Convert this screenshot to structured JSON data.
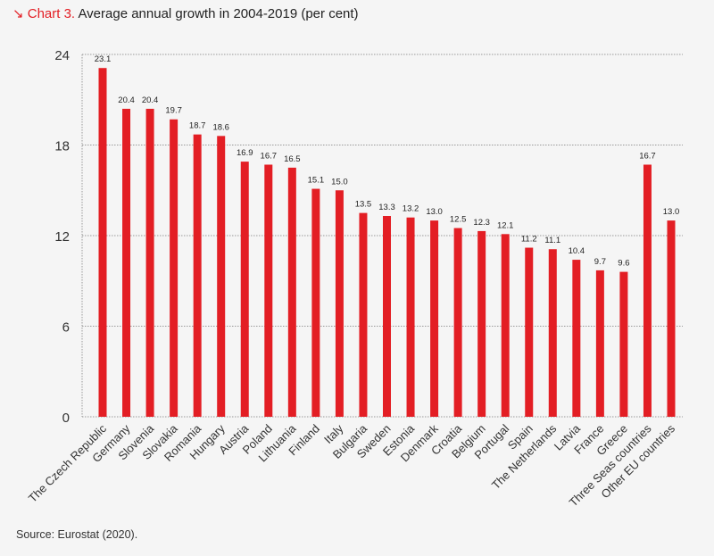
{
  "title": {
    "arrow_icon": "arrow-down-right-icon",
    "lead": "↘ Chart 3.",
    "text": "Average annual growth in 2004-2019 (per cent)"
  },
  "source": "Source: Eurostat (2020).",
  "chart_data": {
    "type": "bar",
    "title": "Average annual growth in 2004-2019 (per cent)",
    "xlabel": "",
    "ylabel": "",
    "ylim": [
      0,
      24
    ],
    "yticks": [
      0,
      6,
      12,
      18,
      24
    ],
    "grid": true,
    "bar_color": "#e31e24",
    "categories": [
      "The Czech Republic",
      "Germany",
      "Slovenia",
      "Slovakia",
      "Romania",
      "Hungary",
      "Austria",
      "Poland",
      "Lithuania",
      "Finland",
      "Italy",
      "Bulgaria",
      "Sweden",
      "Estonia",
      "Denmark",
      "Croatia",
      "Belgium",
      "Portugal",
      "Spain",
      "The Netherlands",
      "Latvia",
      "France",
      "Greece",
      "Three Seas countries",
      "Other EU countries"
    ],
    "values": [
      23.1,
      20.4,
      20.4,
      19.7,
      18.7,
      18.6,
      16.9,
      16.7,
      16.5,
      15.1,
      15.0,
      13.5,
      13.3,
      13.2,
      13.0,
      12.5,
      12.3,
      12.1,
      11.2,
      11.1,
      10.4,
      9.7,
      9.6,
      16.7,
      13.0
    ],
    "labels": [
      "23.1",
      "20.4",
      "20.4",
      "19.7",
      "18.7",
      "18.6",
      "16.9",
      "16.7",
      "16.5",
      "15.1",
      "15.0",
      "13.5",
      "13.3",
      "13.2",
      "13.0",
      "12.5",
      "12.3",
      "12.1",
      "11.2",
      "11.1",
      "10.4",
      "9.7",
      "9.6",
      "16.7",
      "13.0"
    ]
  }
}
